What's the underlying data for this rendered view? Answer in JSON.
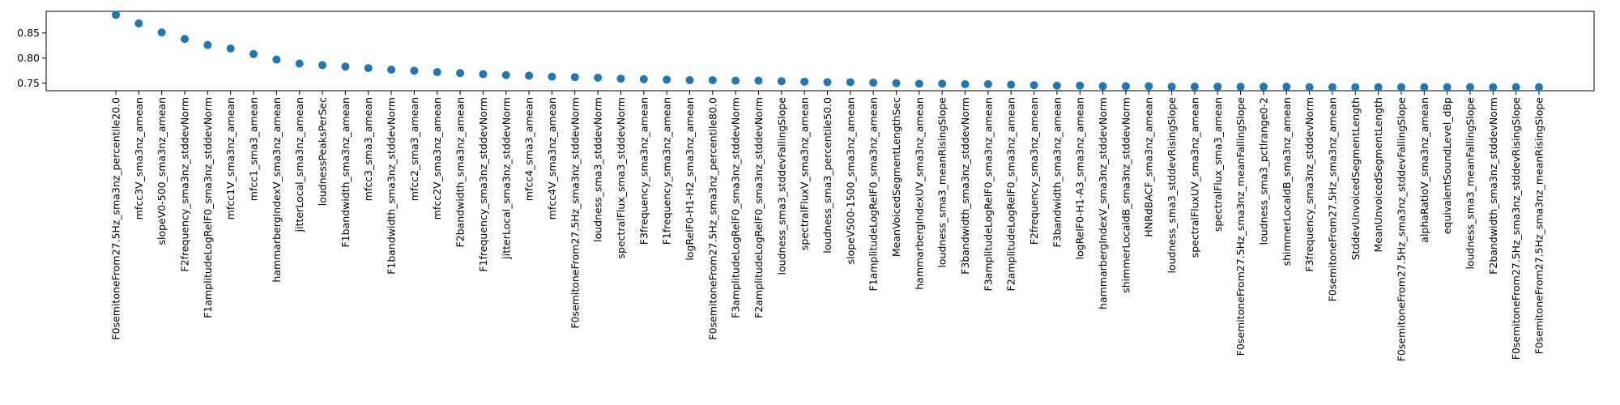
{
  "chart_data": {
    "type": "scatter",
    "title": "",
    "xlabel": "",
    "ylabel": "",
    "ylim": [
      0.735,
      0.893
    ],
    "yticks": [
      0.75,
      0.8,
      0.85
    ],
    "ytick_labels": [
      "0.75",
      "0.80",
      "0.85"
    ],
    "grid": false,
    "legend": "none",
    "marker_color": "#1f77b4",
    "categories": [
      "F0semitoneFrom27.5Hz_sma3nz_percentile20.0",
      "mfcc3V_sma3nz_amean",
      "slopeV0-500_sma3nz_amean",
      "F2frequency_sma3nz_stddevNorm",
      "F1amplitudeLogRelF0_sma3nz_stddevNorm",
      "mfcc1V_sma3nz_amean",
      "mfcc1_sma3_amean",
      "hammarbergIndexV_sma3nz_amean",
      "jitterLocal_sma3nz_amean",
      "loudnessPeaksPerSec",
      "F1bandwidth_sma3nz_amean",
      "mfcc3_sma3_amean",
      "F1bandwidth_sma3nz_stddevNorm",
      "mfcc2_sma3_amean",
      "mfcc2V_sma3nz_amean",
      "F2bandwidth_sma3nz_amean",
      "F1frequency_sma3nz_stddevNorm",
      "jitterLocal_sma3nz_stddevNorm",
      "mfcc4_sma3_amean",
      "mfcc4V_sma3nz_amean",
      "F0semitoneFrom27.5Hz_sma3nz_stddevNorm",
      "loudness_sma3_stddevNorm",
      "spectralFlux_sma3_stddevNorm",
      "F3frequency_sma3nz_amean",
      "F1frequency_sma3nz_amean",
      "logRelF0-H1-H2_sma3nz_amean",
      "F0semitoneFrom27.5Hz_sma3nz_percentile80.0",
      "F3amplitudeLogRelF0_sma3nz_stddevNorm",
      "F2amplitudeLogRelF0_sma3nz_stddevNorm",
      "loudness_sma3_stddevFallingSlope",
      "spectralFluxV_sma3nz_amean",
      "loudness_sma3_percentile50.0",
      "slopeV500-1500_sma3nz_amean",
      "F1amplitudeLogRelF0_sma3nz_amean",
      "MeanVoicedSegmentLengthSec",
      "hammarbergIndexUV_sma3nz_amean",
      "loudness_sma3_meanRisingSlope",
      "F3bandwidth_sma3nz_stddevNorm",
      "F3amplitudeLogRelF0_sma3nz_amean",
      "F2amplitudeLogRelF0_sma3nz_amean",
      "F2frequency_sma3nz_amean",
      "F3bandwidth_sma3nz_amean",
      "logRelF0-H1-A3_sma3nz_amean",
      "hammarbergIndexV_sma3nz_stddevNorm",
      "shimmerLocaldB_sma3nz_stddevNorm",
      "HNRdBACF_sma3nz_amean",
      "loudness_sma3_stddevRisingSlope",
      "spectralFluxUV_sma3nz_amean",
      "spectralFlux_sma3_amean",
      "F0semitoneFrom27.5Hz_sma3nz_meanFallingSlope",
      "loudness_sma3_pctlrange0-2",
      "shimmerLocaldB_sma3nz_amean",
      "F3frequency_sma3nz_stddevNorm",
      "F0semitoneFrom27.5Hz_sma3nz_amean",
      "StddevUnvoicedSegmentLength",
      "MeanUnvoicedSegmentLength",
      "F0semitoneFrom27.5Hz_sma3nz_stddevFallingSlope",
      "alphaRatioV_sma3nz_amean",
      "equivalentSoundLevel_dBp",
      "loudness_sma3_meanFallingSlope",
      "F2bandwidth_sma3nz_stddevNorm",
      "F0semitoneFrom27.5Hz_sma3nz_stddevRisingSlope",
      "F0semitoneFrom27.5Hz_sma3nz_meanRisingSlope"
    ],
    "values": [
      0.886,
      0.869,
      0.851,
      0.838,
      0.826,
      0.819,
      0.808,
      0.797,
      0.789,
      0.786,
      0.783,
      0.78,
      0.777,
      0.775,
      0.772,
      0.77,
      0.768,
      0.766,
      0.765,
      0.763,
      0.762,
      0.761,
      0.759,
      0.758,
      0.757,
      0.756,
      0.756,
      0.755,
      0.755,
      0.754,
      0.753,
      0.752,
      0.752,
      0.751,
      0.75,
      0.749,
      0.749,
      0.748,
      0.748,
      0.747,
      0.746,
      0.745,
      0.745,
      0.744,
      0.744,
      0.744,
      0.743,
      0.743,
      0.743,
      0.743,
      0.743,
      0.743,
      0.742,
      0.742,
      0.742,
      0.742,
      0.742,
      0.742,
      0.742,
      0.742,
      0.742,
      0.742,
      0.742
    ]
  }
}
